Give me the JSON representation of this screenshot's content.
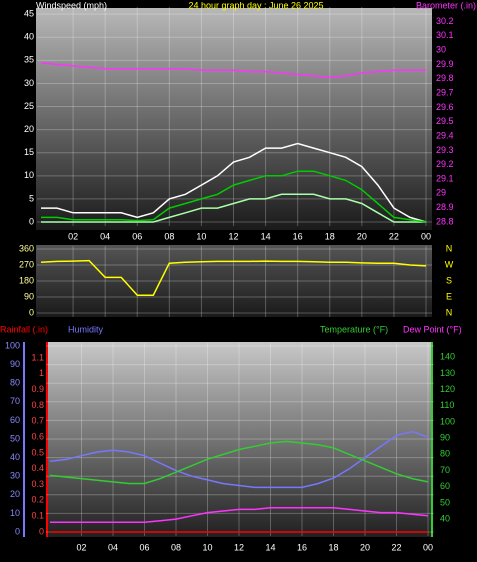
{
  "chart_data": [
    {
      "type": "line",
      "title": "24 hour graph day : June 26 2025",
      "ylabel": "Windspeed (mph)",
      "y2label": "Barometer (.in)",
      "x": [
        0,
        1,
        2,
        3,
        4,
        5,
        6,
        7,
        8,
        9,
        10,
        11,
        12,
        13,
        14,
        15,
        16,
        17,
        18,
        19,
        20,
        21,
        22,
        23,
        24
      ],
      "xlim": [
        0,
        24
      ],
      "xticks": [
        {
          "value": 2,
          "label": "02"
        },
        {
          "value": 4,
          "label": "04"
        },
        {
          "value": 6,
          "label": "06"
        },
        {
          "value": 8,
          "label": "08"
        },
        10,
        12,
        14,
        16,
        18,
        20,
        22,
        {
          "value": 24,
          "label": "00"
        }
      ],
      "ylim": [
        0,
        45.9
      ],
      "yticks": [
        0,
        5,
        10,
        15,
        20,
        25,
        30,
        35,
        40,
        45
      ],
      "y2lim": [
        28.8,
        30.28
      ],
      "y2ticks": [
        28.8,
        28.9,
        29,
        29.1,
        29.2,
        29.3,
        29.4,
        29.5,
        29.6,
        29.7,
        29.8,
        29.9,
        30,
        30.1,
        30.2
      ],
      "grid": true,
      "series": [
        {
          "color": "#ffffff",
          "values": [
            3,
            3,
            2,
            2,
            2,
            2,
            1,
            2,
            5,
            6,
            8,
            10,
            13,
            14,
            16,
            16,
            17,
            16,
            15,
            14,
            12,
            8,
            3,
            1,
            0
          ]
        },
        {
          "color": "#aaffaa",
          "values": [
            0,
            0,
            0,
            0,
            0,
            0,
            0,
            0,
            1,
            2,
            3,
            3,
            4,
            5,
            5,
            6,
            6,
            6,
            5,
            5,
            4,
            2,
            0,
            0,
            0
          ]
        },
        {
          "color": "#00cc00",
          "values": [
            1,
            1,
            0.5,
            0.5,
            0.5,
            0.5,
            0.3,
            0.5,
            3,
            4,
            5,
            6,
            8,
            9,
            10,
            10,
            11,
            11,
            10,
            9,
            7,
            4,
            1,
            0.5,
            0
          ]
        },
        {
          "color": "#ff33ff",
          "axis": "y2",
          "values": [
            29.91,
            29.9,
            29.89,
            29.88,
            29.87,
            29.87,
            29.87,
            29.87,
            29.87,
            29.87,
            29.86,
            29.86,
            29.86,
            29.85,
            29.85,
            29.84,
            29.83,
            29.82,
            29.81,
            29.82,
            29.84,
            29.85,
            29.86,
            29.86,
            29.86
          ]
        }
      ]
    },
    {
      "type": "line",
      "x": [
        0,
        1,
        2,
        3,
        4,
        5,
        6,
        7,
        8,
        9,
        10,
        11,
        12,
        13,
        14,
        15,
        16,
        17,
        18,
        19,
        20,
        21,
        22,
        23,
        24
      ],
      "xlim": [
        0,
        24
      ],
      "ylim": [
        0,
        360
      ],
      "yticks": [
        0,
        90,
        180,
        270,
        360
      ],
      "y2lim": [
        0,
        360
      ],
      "y2ticks": [
        {
          "value": 360,
          "label": "N"
        },
        {
          "value": 270,
          "label": "W"
        },
        {
          "value": 180,
          "label": "S"
        },
        {
          "value": 90,
          "label": "E"
        },
        {
          "value": 0,
          "label": "N"
        }
      ],
      "grid": true,
      "series": [
        {
          "color": "#ffff00",
          "values": [
            285,
            290,
            292,
            295,
            200,
            200,
            100,
            100,
            280,
            285,
            288,
            290,
            290,
            290,
            292,
            290,
            290,
            288,
            285,
            285,
            282,
            280,
            280,
            270,
            265
          ]
        }
      ]
    },
    {
      "type": "line",
      "x": [
        0,
        1,
        2,
        3,
        4,
        5,
        6,
        7,
        8,
        9,
        10,
        11,
        12,
        13,
        14,
        15,
        16,
        17,
        18,
        19,
        20,
        21,
        22,
        23,
        24
      ],
      "xlim": [
        0,
        24
      ],
      "xticks": [
        {
          "value": 2,
          "label": "02"
        },
        {
          "value": 4,
          "label": "04"
        },
        {
          "value": 6,
          "label": "06"
        },
        {
          "value": 8,
          "label": "08"
        },
        10,
        12,
        14,
        16,
        18,
        20,
        22,
        {
          "value": 24,
          "label": "00"
        }
      ],
      "ylim": [
        0,
        100
      ],
      "yticks": [
        0,
        10,
        20,
        30,
        40,
        50,
        60,
        70,
        80,
        90,
        100
      ],
      "y2lim": [
        32,
        147
      ],
      "y2ticks": [
        40,
        50,
        60,
        70,
        80,
        90,
        100,
        110,
        120,
        130,
        140
      ],
      "y3lim": [
        0,
        1.176
      ],
      "y3ticks": [
        0,
        0.1,
        0.2,
        0.3,
        0.4,
        0.5,
        0.6,
        0.7,
        0.8,
        0.9,
        1,
        1.1
      ],
      "grid": true,
      "series": [
        {
          "name": "Rainfall (.in)",
          "color": "#ff0000",
          "axis": "y3",
          "values": [
            0,
            0,
            0,
            0,
            0,
            0,
            0,
            0,
            0,
            0,
            0,
            0,
            0,
            0,
            0,
            0,
            0,
            0,
            0,
            0,
            0,
            0,
            0,
            0,
            0
          ]
        },
        {
          "name": "Humidity",
          "color": "#7777ff",
          "values": [
            38,
            39,
            41,
            43,
            44,
            43,
            41,
            37,
            33,
            30,
            28,
            26,
            25,
            24,
            24,
            24,
            24,
            26,
            29,
            34,
            40,
            46,
            52,
            54,
            51
          ]
        },
        {
          "name": "Temperature (°F)",
          "color": "#33cc33",
          "axis": "y2",
          "values": [
            67,
            66,
            65,
            64,
            63,
            62,
            62,
            65,
            69,
            73,
            77,
            80,
            83,
            85,
            87,
            88,
            87,
            86,
            84,
            80,
            76,
            72,
            68,
            65,
            63
          ]
        },
        {
          "name": "Dew Point (°F)",
          "color": "#ff33ff",
          "axis": "y2",
          "values": [
            38,
            38,
            38,
            38,
            38,
            38,
            38,
            39,
            40,
            42,
            44,
            45,
            46,
            46,
            47,
            47,
            47,
            47,
            47,
            46,
            45,
            44,
            44,
            43,
            42
          ]
        }
      ]
    }
  ]
}
